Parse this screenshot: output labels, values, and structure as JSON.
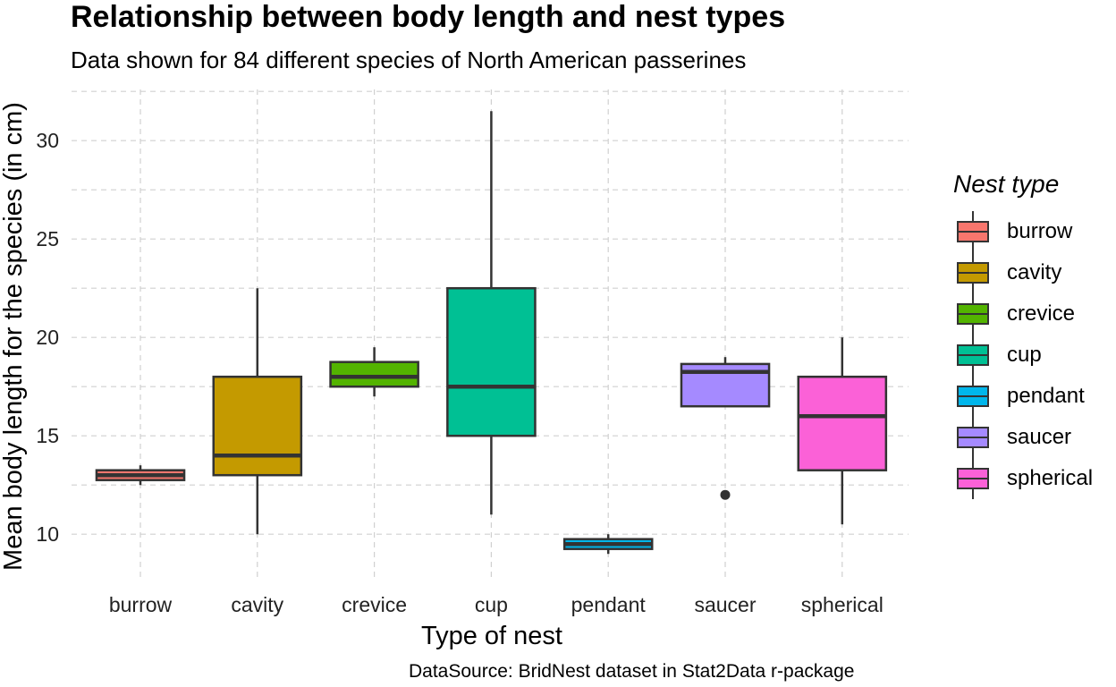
{
  "chart_data": {
    "type": "boxplot",
    "title": "Relationship between body length and nest types",
    "subtitle": "Data shown for 84 different species of North American passerines",
    "caption": "DataSource: BridNest dataset in Stat2Data r-package",
    "xlabel": "Type of nest",
    "ylabel": "Mean body length for the species (in cm)",
    "ylim": [
      7.6,
      32.6
    ],
    "yticks": [
      10,
      15,
      20,
      25,
      30
    ],
    "grid": true,
    "legend": {
      "title": "Nest type",
      "placement": "right"
    },
    "categories": [
      "burrow",
      "cavity",
      "crevice",
      "cup",
      "pendant",
      "saucer",
      "spherical"
    ],
    "boxes": [
      {
        "category": "burrow",
        "min": 12.5,
        "q1": 12.75,
        "median": 13.0,
        "q3": 13.25,
        "max": 13.5,
        "outliers": [],
        "color": "#F8766D"
      },
      {
        "category": "cavity",
        "min": 10.0,
        "q1": 13.0,
        "median": 14.0,
        "q3": 18.0,
        "max": 22.5,
        "outliers": [],
        "color": "#C49A00"
      },
      {
        "category": "crevice",
        "min": 17.0,
        "q1": 17.5,
        "median": 18.0,
        "q3": 18.75,
        "max": 19.5,
        "outliers": [],
        "color": "#53B400"
      },
      {
        "category": "cup",
        "min": 11.0,
        "q1": 15.0,
        "median": 17.5,
        "q3": 22.5,
        "max": 31.5,
        "outliers": [],
        "color": "#00C094"
      },
      {
        "category": "pendant",
        "min": 9.0,
        "q1": 9.25,
        "median": 9.5,
        "q3": 9.75,
        "max": 10.0,
        "outliers": [],
        "color": "#00B6EB"
      },
      {
        "category": "saucer",
        "min": 16.5,
        "q1": 16.5,
        "median": 18.25,
        "q3": 18.65,
        "max": 19.0,
        "outliers": [
          12.0
        ],
        "color": "#A58AFF"
      },
      {
        "category": "spherical",
        "min": 10.5,
        "q1": 13.25,
        "median": 16.0,
        "q3": 18.0,
        "max": 20.0,
        "outliers": [],
        "color": "#FB61D7"
      }
    ]
  }
}
